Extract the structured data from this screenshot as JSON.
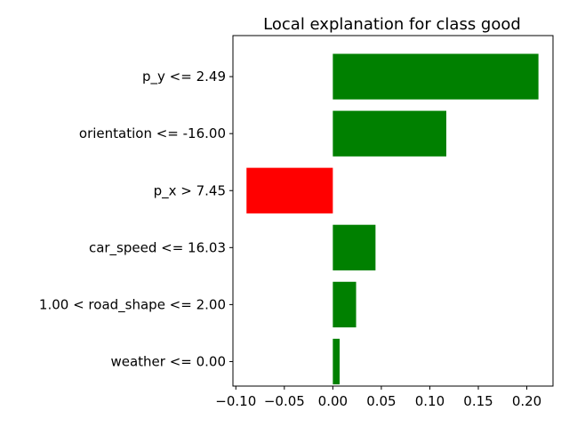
{
  "chart_data": {
    "type": "bar",
    "orientation": "horizontal",
    "title": "Local explanation for class good",
    "xlabel": "",
    "ylabel": "",
    "categories": [
      "p_y <= 2.49",
      "orientation <= -16.00",
      "p_x > 7.45",
      "car_speed <= 16.03",
      "1.00 < road_shape <= 2.00",
      "weather <= 0.00"
    ],
    "values": [
      0.212,
      0.117,
      -0.089,
      0.044,
      0.024,
      0.007
    ],
    "colors": [
      "#008000",
      "#008000",
      "#ff0000",
      "#008000",
      "#008000",
      "#008000"
    ],
    "xlim": [
      -0.103,
      0.227
    ],
    "xticks": [
      -0.1,
      -0.05,
      0.0,
      0.05,
      0.1,
      0.15,
      0.2
    ],
    "xtick_labels": [
      "−0.10",
      "−0.05",
      "0.00",
      "0.05",
      "0.10",
      "0.15",
      "0.20"
    ],
    "grid": false,
    "legend": "none"
  }
}
